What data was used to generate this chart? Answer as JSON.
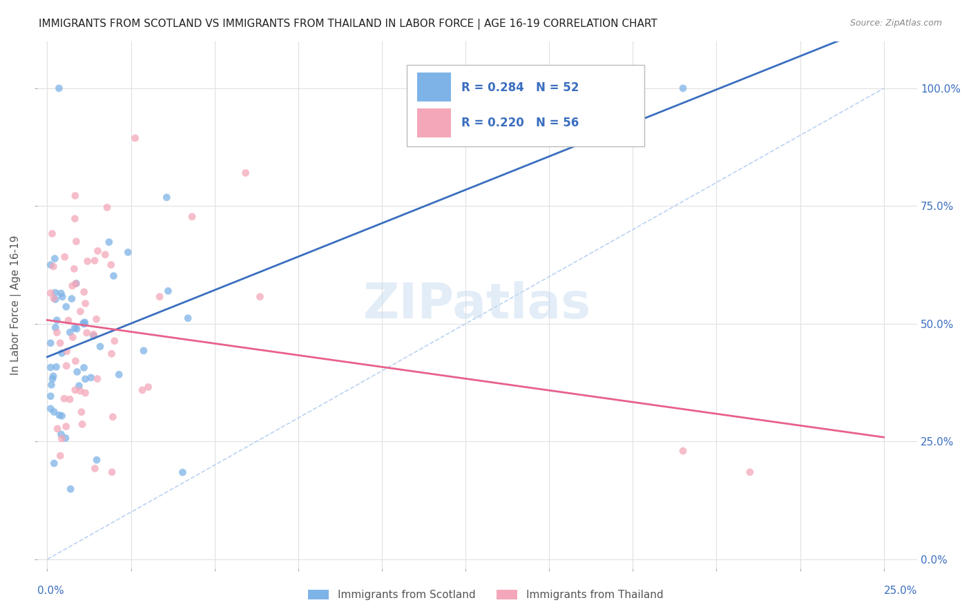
{
  "title": "IMMIGRANTS FROM SCOTLAND VS IMMIGRANTS FROM THAILAND IN LABOR FORCE | AGE 16-19 CORRELATION CHART",
  "source": "Source: ZipAtlas.com",
  "ylabel": "In Labor Force | Age 16-19",
  "scotland_R": 0.284,
  "scotland_N": 52,
  "thailand_R": 0.22,
  "thailand_N": 56,
  "scotland_color": "#7EB3E8",
  "thailand_color": "#F4A7B9",
  "scotland_line_color": "#3B6EBF",
  "thailand_line_color": "#E8608A",
  "diagonal_color": "#A8C8F0",
  "watermark": "ZIPatlas",
  "legend_label_scotland": "Immigrants from Scotland",
  "legend_label_thailand": "Immigrants from Thailand"
}
